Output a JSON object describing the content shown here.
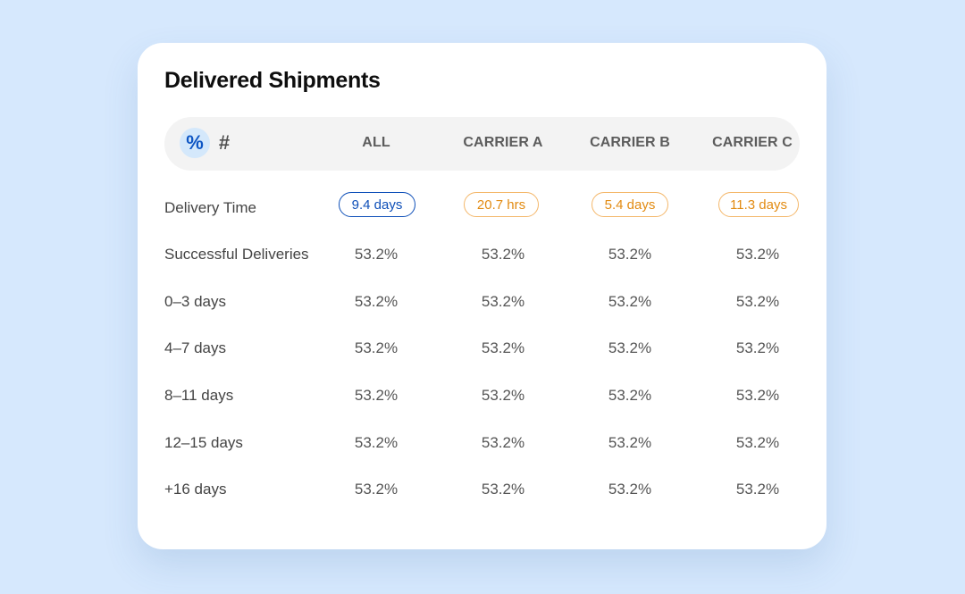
{
  "card": {
    "title": "Delivered Shipments"
  },
  "toggle": {
    "percent_label": "%",
    "count_label": "#"
  },
  "columns": [
    "ALL",
    "CARRIER A",
    "CARRIER B",
    "CARRIER C"
  ],
  "delivery_time": {
    "label": "Delivery Time",
    "values": [
      "9.4 days",
      "20.7 hrs",
      "5.4 days",
      "11.3 days"
    ],
    "colors": {
      "highlight": "#0e4fb8",
      "warning": "#e28b12"
    }
  },
  "rows": [
    {
      "label": "Successful Deliveries",
      "values": [
        "53.2%",
        "53.2%",
        "53.2%",
        "53.2%"
      ]
    },
    {
      "label": "0–3 days",
      "values": [
        "53.2%",
        "53.2%",
        "53.2%",
        "53.2%"
      ]
    },
    {
      "label": "4–7 days",
      "values": [
        "53.2%",
        "53.2%",
        "53.2%",
        "53.2%"
      ]
    },
    {
      "label": "8–11 days",
      "values": [
        "53.2%",
        "53.2%",
        "53.2%",
        "53.2%"
      ]
    },
    {
      "label": "12–15 days",
      "values": [
        "53.2%",
        "53.2%",
        "53.2%",
        "53.2%"
      ]
    },
    {
      "label": "+16 days",
      "values": [
        "53.2%",
        "53.2%",
        "53.2%",
        "53.2%"
      ]
    }
  ]
}
